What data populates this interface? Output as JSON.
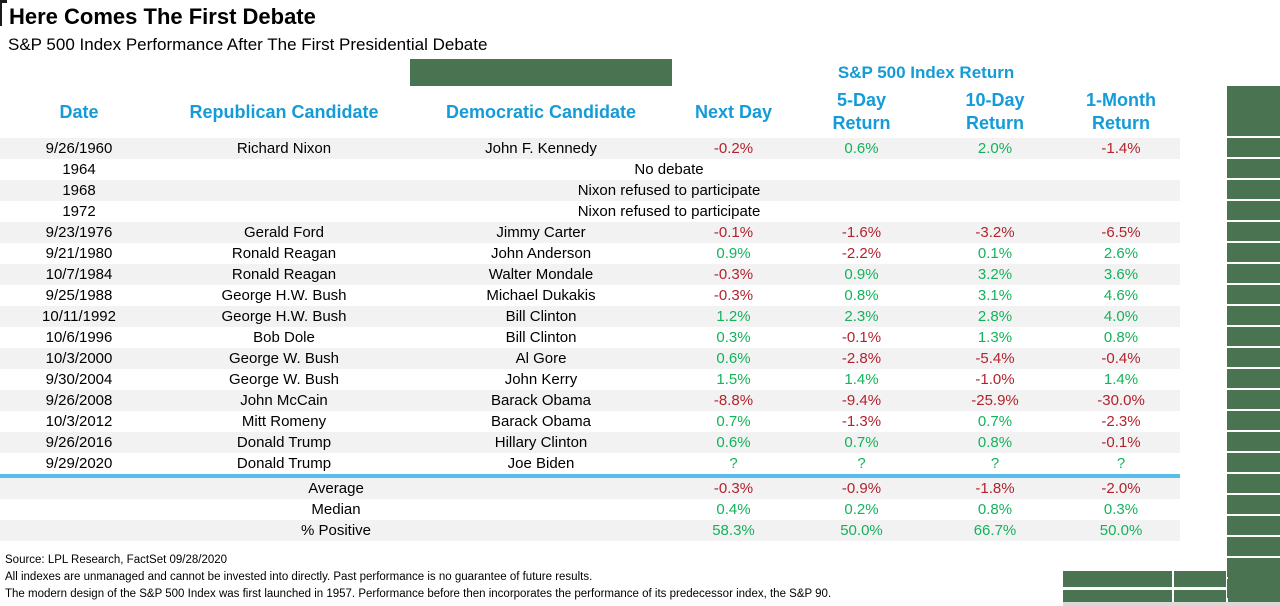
{
  "colors": {
    "header_blue": "#149bd8",
    "positive_green": "#14b25a",
    "negative_red": "#b2232d",
    "sage_green": "#4a7351",
    "divider_blue": "#5abce8",
    "stripe_gray": "#f2f2f2",
    "bottom_strip_gray": "#d9d9d9"
  },
  "chart_data": {
    "type": "table",
    "title": "Here Comes The First Debate",
    "subtitle": "S&P 500 Index Performance After The First Presidential Debate",
    "group_header": "S&P 500 Index Return",
    "columns": [
      "Date",
      "Republican Candidate",
      "Democratic Candidate",
      "Next Day",
      "5-Day\nReturn",
      "10-Day\nReturn",
      "1-Month\nReturn"
    ],
    "rows": [
      {
        "date": "9/26/1960",
        "republican": "Richard Nixon",
        "democrat": "John F. Kennedy",
        "returns": [
          {
            "v": "-0.2%",
            "c": "neg"
          },
          {
            "v": "0.6%",
            "c": "pos"
          },
          {
            "v": "2.0%",
            "c": "pos"
          },
          {
            "v": "-1.4%",
            "c": "neg"
          }
        ]
      },
      {
        "date": "1964",
        "note": "No debate"
      },
      {
        "date": "1968",
        "note": "Nixon refused to participate"
      },
      {
        "date": "1972",
        "note": "Nixon refused to participate"
      },
      {
        "date": "9/23/1976",
        "republican": "Gerald Ford",
        "democrat": "Jimmy Carter",
        "returns": [
          {
            "v": "-0.1%",
            "c": "neg"
          },
          {
            "v": "-1.6%",
            "c": "neg"
          },
          {
            "v": "-3.2%",
            "c": "neg"
          },
          {
            "v": "-6.5%",
            "c": "neg"
          }
        ]
      },
      {
        "date": "9/21/1980",
        "republican": "Ronald Reagan",
        "democrat": "John Anderson",
        "returns": [
          {
            "v": "0.9%",
            "c": "pos"
          },
          {
            "v": "-2.2%",
            "c": "neg"
          },
          {
            "v": "0.1%",
            "c": "pos"
          },
          {
            "v": "2.6%",
            "c": "pos"
          }
        ]
      },
      {
        "date": "10/7/1984",
        "republican": "Ronald Reagan",
        "democrat": "Walter Mondale",
        "returns": [
          {
            "v": "-0.3%",
            "c": "neg"
          },
          {
            "v": "0.9%",
            "c": "pos"
          },
          {
            "v": "3.2%",
            "c": "pos"
          },
          {
            "v": "3.6%",
            "c": "pos"
          }
        ]
      },
      {
        "date": "9/25/1988",
        "republican": "George H.W. Bush",
        "democrat": "Michael Dukakis",
        "returns": [
          {
            "v": "-0.3%",
            "c": "neg"
          },
          {
            "v": "0.8%",
            "c": "pos"
          },
          {
            "v": "3.1%",
            "c": "pos"
          },
          {
            "v": "4.6%",
            "c": "pos"
          }
        ]
      },
      {
        "date": "10/11/1992",
        "republican": "George H.W. Bush",
        "democrat": "Bill Clinton",
        "returns": [
          {
            "v": "1.2%",
            "c": "pos"
          },
          {
            "v": "2.3%",
            "c": "pos"
          },
          {
            "v": "2.8%",
            "c": "pos"
          },
          {
            "v": "4.0%",
            "c": "pos"
          }
        ]
      },
      {
        "date": "10/6/1996",
        "republican": "Bob Dole",
        "democrat": "Bill Clinton",
        "returns": [
          {
            "v": "0.3%",
            "c": "pos"
          },
          {
            "v": "-0.1%",
            "c": "neg"
          },
          {
            "v": "1.3%",
            "c": "pos"
          },
          {
            "v": "0.8%",
            "c": "pos"
          }
        ]
      },
      {
        "date": "10/3/2000",
        "republican": "George W. Bush",
        "democrat": "Al Gore",
        "returns": [
          {
            "v": "0.6%",
            "c": "pos"
          },
          {
            "v": "-2.8%",
            "c": "neg"
          },
          {
            "v": "-5.4%",
            "c": "neg"
          },
          {
            "v": "-0.4%",
            "c": "neg"
          }
        ]
      },
      {
        "date": "9/30/2004",
        "republican": "George W. Bush",
        "democrat": "John Kerry",
        "returns": [
          {
            "v": "1.5%",
            "c": "pos"
          },
          {
            "v": "1.4%",
            "c": "pos"
          },
          {
            "v": "-1.0%",
            "c": "neg"
          },
          {
            "v": "1.4%",
            "c": "pos"
          }
        ]
      },
      {
        "date": "9/26/2008",
        "republican": "John McCain",
        "democrat": "Barack Obama",
        "returns": [
          {
            "v": "-8.8%",
            "c": "neg"
          },
          {
            "v": "-9.4%",
            "c": "neg"
          },
          {
            "v": "-25.9%",
            "c": "neg"
          },
          {
            "v": "-30.0%",
            "c": "neg"
          }
        ]
      },
      {
        "date": "10/3/2012",
        "republican": "Mitt Romeny",
        "democrat": "Barack Obama",
        "returns": [
          {
            "v": "0.7%",
            "c": "pos"
          },
          {
            "v": "-1.3%",
            "c": "neg"
          },
          {
            "v": "0.7%",
            "c": "pos"
          },
          {
            "v": "-2.3%",
            "c": "neg"
          }
        ]
      },
      {
        "date": "9/26/2016",
        "republican": "Donald Trump",
        "democrat": "Hillary Clinton",
        "returns": [
          {
            "v": "0.6%",
            "c": "pos"
          },
          {
            "v": "0.7%",
            "c": "pos"
          },
          {
            "v": "0.8%",
            "c": "pos"
          },
          {
            "v": "-0.1%",
            "c": "neg"
          }
        ]
      },
      {
        "date": "9/29/2020",
        "republican": "Donald Trump",
        "democrat": "Joe Biden",
        "returns": [
          {
            "v": "?",
            "c": "pos"
          },
          {
            "v": "?",
            "c": "pos"
          },
          {
            "v": "?",
            "c": "pos"
          },
          {
            "v": "?",
            "c": "pos"
          }
        ]
      }
    ],
    "summary_rows": [
      {
        "label": "Average",
        "returns": [
          {
            "v": "-0.3%",
            "c": "neg"
          },
          {
            "v": "-0.9%",
            "c": "neg"
          },
          {
            "v": "-1.8%",
            "c": "neg"
          },
          {
            "v": "-2.0%",
            "c": "neg"
          }
        ]
      },
      {
        "label": "Median",
        "returns": [
          {
            "v": "0.4%",
            "c": "pos"
          },
          {
            "v": "0.2%",
            "c": "pos"
          },
          {
            "v": "0.8%",
            "c": "pos"
          },
          {
            "v": "0.3%",
            "c": "pos"
          }
        ]
      },
      {
        "label": "% Positive",
        "returns": [
          {
            "v": "58.3%",
            "c": "pos"
          },
          {
            "v": "50.0%",
            "c": "pos"
          },
          {
            "v": "66.7%",
            "c": "pos"
          },
          {
            "v": "50.0%",
            "c": "pos"
          }
        ]
      }
    ],
    "footnotes": [
      "Source: LPL Research, FactSet 09/28/2020",
      "All indexes are unmanaged and cannot be invested into directly. Past performance is no guarantee of future results.",
      "The modern design of the S&P 500 Index was first launched in 1957. Performance before then incorporates the performance of its predecessor index, the S&P 90."
    ]
  }
}
